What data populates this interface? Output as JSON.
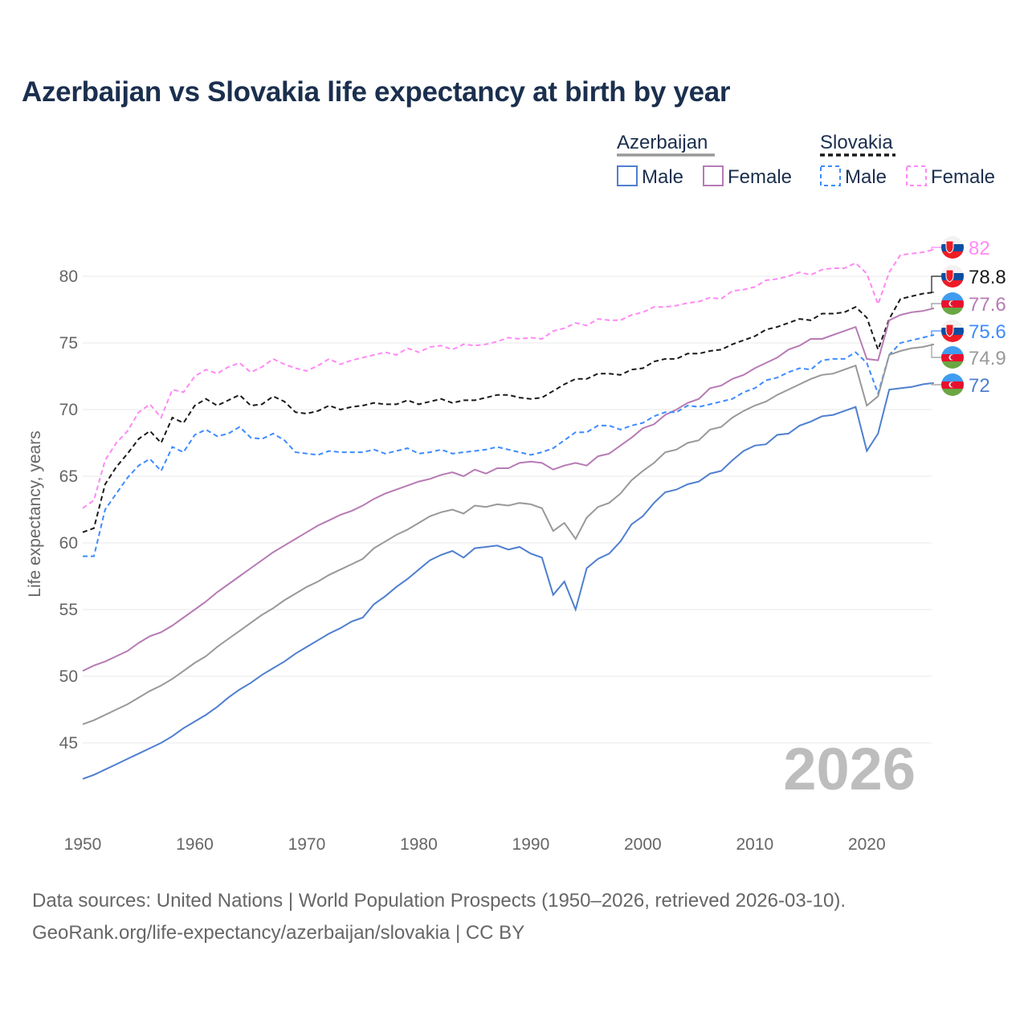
{
  "title": "Azerbaijan vs Slovakia life expectancy at birth by year",
  "sources": {
    "line1": "Data sources: United Nations | World Population Prospects (1950–2026, retrieved 2026-03-10).",
    "line2": "GeoRank.org/life-expectancy/azerbaijan/slovakia | CC BY"
  },
  "chart_data": {
    "type": "line",
    "title": "Azerbaijan vs Slovakia life expectancy at birth by year",
    "xlabel": "",
    "ylabel": "Life expectancy, years",
    "xlim": [
      1950,
      2026
    ],
    "ylim": [
      41,
      84
    ],
    "x_ticks": [
      1950,
      1960,
      1970,
      1980,
      1990,
      2000,
      2010,
      2020
    ],
    "y_ticks": [
      45,
      50,
      55,
      60,
      65,
      70,
      75,
      80
    ],
    "grid": true,
    "current_year_label": "2026",
    "legend": {
      "placement": "top-right",
      "groups": [
        {
          "country": "Azerbaijan",
          "style": "solid",
          "items": [
            "Male",
            "Female"
          ]
        },
        {
          "country": "Slovakia",
          "style": "dashed",
          "items": [
            "Male",
            "Female"
          ]
        }
      ]
    },
    "x_start": 1950,
    "series": [
      {
        "name": "Slovakia Female",
        "country": "Slovakia",
        "color": "#ff88f5",
        "dashed": true,
        "end_label": "82",
        "values": [
          62.6,
          63.2,
          66.2,
          67.5,
          68.4,
          69.8,
          70.4,
          69.4,
          71.5,
          71.3,
          72.5,
          73.0,
          72.7,
          73.2,
          73.5,
          72.8,
          73.2,
          73.8,
          73.4,
          73.1,
          72.9,
          73.3,
          73.8,
          73.4,
          73.7,
          73.9,
          74.1,
          74.3,
          74.1,
          74.6,
          74.3,
          74.7,
          74.8,
          74.5,
          74.9,
          74.8,
          74.9,
          75.1,
          75.4,
          75.3,
          75.4,
          75.3,
          75.9,
          76.1,
          76.5,
          76.3,
          76.8,
          76.7,
          76.7,
          77.1,
          77.3,
          77.7,
          77.7,
          77.8,
          78.0,
          78.1,
          78.4,
          78.3,
          78.9,
          79.0,
          79.2,
          79.7,
          79.8,
          80.0,
          80.3,
          80.1,
          80.5,
          80.6,
          80.6,
          81.0,
          80.2,
          77.9,
          80.3,
          81.6,
          81.7,
          81.8,
          82.0
        ]
      },
      {
        "name": "Slovakia",
        "country": "Slovakia",
        "color": "#1a1a1a",
        "dashed": true,
        "end_label": "78.8",
        "values": [
          60.8,
          61.1,
          64.4,
          65.7,
          66.7,
          67.8,
          68.4,
          67.5,
          69.4,
          69.0,
          70.3,
          70.8,
          70.3,
          70.7,
          71.1,
          70.3,
          70.4,
          71.0,
          70.6,
          69.8,
          69.7,
          69.9,
          70.3,
          70.0,
          70.2,
          70.3,
          70.5,
          70.4,
          70.4,
          70.7,
          70.4,
          70.6,
          70.8,
          70.5,
          70.7,
          70.7,
          70.9,
          71.1,
          71.1,
          70.9,
          70.8,
          70.9,
          71.4,
          71.9,
          72.3,
          72.3,
          72.7,
          72.7,
          72.6,
          73.0,
          73.1,
          73.6,
          73.8,
          73.8,
          74.2,
          74.2,
          74.4,
          74.5,
          74.9,
          75.2,
          75.5,
          76.0,
          76.2,
          76.5,
          76.8,
          76.7,
          77.2,
          77.2,
          77.3,
          77.7,
          76.9,
          74.5,
          76.8,
          78.3,
          78.5,
          78.7,
          78.8
        ]
      },
      {
        "name": "Azerbaijan Female",
        "country": "Azerbaijan",
        "color": "#b77bb4",
        "dashed": false,
        "end_label": "77.6",
        "values": [
          50.4,
          50.8,
          51.1,
          51.5,
          51.9,
          52.5,
          53.0,
          53.3,
          53.8,
          54.4,
          55.0,
          55.6,
          56.3,
          56.9,
          57.5,
          58.1,
          58.7,
          59.3,
          59.8,
          60.3,
          60.8,
          61.3,
          61.7,
          62.1,
          62.4,
          62.8,
          63.3,
          63.7,
          64.0,
          64.3,
          64.6,
          64.8,
          65.1,
          65.3,
          65.0,
          65.5,
          65.2,
          65.6,
          65.6,
          66.0,
          66.1,
          66.0,
          65.5,
          65.8,
          66.0,
          65.8,
          66.5,
          66.7,
          67.3,
          67.9,
          68.6,
          68.9,
          69.6,
          70.0,
          70.5,
          70.8,
          71.6,
          71.8,
          72.3,
          72.6,
          73.1,
          73.5,
          73.9,
          74.5,
          74.8,
          75.3,
          75.3,
          75.6,
          75.9,
          76.2,
          73.8,
          73.7,
          76.7,
          77.1,
          77.3,
          77.4,
          77.6
        ]
      },
      {
        "name": "Slovakia Male",
        "country": "Slovakia",
        "color": "#3d8bff",
        "dashed": true,
        "end_label": "75.6",
        "values": [
          59.0,
          59.0,
          62.5,
          63.7,
          64.9,
          65.8,
          66.3,
          65.4,
          67.2,
          66.8,
          68.1,
          68.5,
          68.0,
          68.2,
          68.7,
          67.9,
          67.8,
          68.2,
          67.7,
          66.8,
          66.7,
          66.6,
          66.9,
          66.8,
          66.8,
          66.8,
          67.0,
          66.7,
          66.9,
          67.1,
          66.7,
          66.8,
          67.0,
          66.7,
          66.8,
          66.9,
          67.0,
          67.2,
          67.0,
          66.8,
          66.6,
          66.8,
          67.1,
          67.7,
          68.3,
          68.3,
          68.8,
          68.8,
          68.5,
          68.8,
          69.0,
          69.5,
          69.8,
          69.8,
          70.3,
          70.2,
          70.4,
          70.6,
          70.8,
          71.3,
          71.6,
          72.2,
          72.4,
          72.8,
          73.1,
          73.0,
          73.7,
          73.8,
          73.8,
          74.3,
          73.5,
          71.2,
          74.1,
          75.0,
          75.2,
          75.4,
          75.6
        ]
      },
      {
        "name": "Azerbaijan",
        "country": "Azerbaijan",
        "color": "#999999",
        "dashed": false,
        "end_label": "74.9",
        "values": [
          46.4,
          46.7,
          47.1,
          47.5,
          47.9,
          48.4,
          48.9,
          49.3,
          49.8,
          50.4,
          51.0,
          51.5,
          52.2,
          52.8,
          53.4,
          54.0,
          54.6,
          55.1,
          55.7,
          56.2,
          56.7,
          57.1,
          57.6,
          58.0,
          58.4,
          58.8,
          59.6,
          60.1,
          60.6,
          61.0,
          61.5,
          62.0,
          62.3,
          62.5,
          62.2,
          62.8,
          62.7,
          62.9,
          62.8,
          63.0,
          62.9,
          62.6,
          60.9,
          61.5,
          60.3,
          61.9,
          62.7,
          63.0,
          63.7,
          64.7,
          65.4,
          66.0,
          66.8,
          67.0,
          67.5,
          67.7,
          68.5,
          68.7,
          69.4,
          69.9,
          70.3,
          70.6,
          71.1,
          71.5,
          71.9,
          72.3,
          72.6,
          72.7,
          73.0,
          73.3,
          70.3,
          71.0,
          74.1,
          74.4,
          74.6,
          74.7,
          74.9
        ]
      },
      {
        "name": "Azerbaijan Male",
        "country": "Azerbaijan",
        "color": "#4f7fcf",
        "dashed": false,
        "end_label": "72",
        "values": [
          42.3,
          42.6,
          43.0,
          43.4,
          43.8,
          44.2,
          44.6,
          45.0,
          45.5,
          46.1,
          46.6,
          47.1,
          47.7,
          48.4,
          49.0,
          49.5,
          50.1,
          50.6,
          51.1,
          51.7,
          52.2,
          52.7,
          53.2,
          53.6,
          54.1,
          54.4,
          55.4,
          56.0,
          56.7,
          57.3,
          58.0,
          58.7,
          59.1,
          59.4,
          58.9,
          59.6,
          59.7,
          59.8,
          59.5,
          59.7,
          59.2,
          58.9,
          56.1,
          57.1,
          55.0,
          58.1,
          58.8,
          59.2,
          60.1,
          61.4,
          62.0,
          63.0,
          63.8,
          64.0,
          64.4,
          64.6,
          65.2,
          65.4,
          66.2,
          66.9,
          67.3,
          67.4,
          68.1,
          68.2,
          68.8,
          69.1,
          69.5,
          69.6,
          69.9,
          70.2,
          66.9,
          68.2,
          71.5,
          71.6,
          71.7,
          71.9,
          72.0
        ]
      }
    ]
  }
}
